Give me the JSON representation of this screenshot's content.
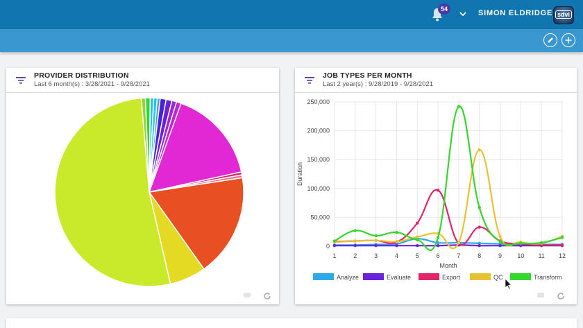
{
  "header": {
    "notifications_count": "54",
    "user_name": "SIMON ELDRIDGE",
    "avatar_text": "sdvi"
  },
  "colors": {
    "topbar": "#1176b0",
    "subbar": "#3b97d0",
    "badge": "#4a3aa8"
  },
  "provider_card": {
    "title": "PROVIDER DISTRIBUTION",
    "subtitle": "Last 6 month(s) : 3/28/2021 - 9/28/2021"
  },
  "jobs_card": {
    "title": "JOB TYPES PER MONTH",
    "subtitle": "Last 2 year(s) : 9/28/2019 - 9/28/2021"
  },
  "chart_data": [
    {
      "type": "pie",
      "title": "",
      "slices": [
        {
          "value": 0.6,
          "color": "#28c2e8"
        },
        {
          "value": 0.6,
          "color": "#28c2e8"
        },
        {
          "value": 0.5,
          "color": "#3aa5e0"
        },
        {
          "value": 1.0,
          "color": "#4622d8"
        },
        {
          "value": 1.0,
          "color": "#6a22d8"
        },
        {
          "value": 0.8,
          "color": "#a424d8"
        },
        {
          "value": 0.8,
          "color": "#c024d8"
        },
        {
          "value": 16.0,
          "color": "#e227d4"
        },
        {
          "value": 0.5,
          "color": "#e02667"
        },
        {
          "value": 0.5,
          "color": "#e7799a"
        },
        {
          "value": 17.5,
          "color": "#e84f22"
        },
        {
          "value": 6.2,
          "color": "#e4da24"
        },
        {
          "value": 52.0,
          "color": "#c8ea2a"
        },
        {
          "value": 0.7,
          "color": "#8cd83a"
        },
        {
          "value": 0.8,
          "color": "#37d62c"
        }
      ]
    },
    {
      "type": "line",
      "title": "",
      "xlabel": "Month",
      "ylabel": "Duration",
      "x": [
        1,
        2,
        3,
        4,
        5,
        6,
        7,
        8,
        9,
        10,
        11,
        12
      ],
      "xlim": [
        1,
        12
      ],
      "ylim": [
        0,
        250000
      ],
      "yticks": [
        "0",
        "50,000",
        "100,000",
        "150,000",
        "200,000",
        "250,000"
      ],
      "legend_position": "bottom",
      "series": [
        {
          "name": "Analyze",
          "color": "#2ea8e6",
          "values": [
            2000,
            2000,
            3000,
            4000,
            13000,
            6000,
            6000,
            5000,
            4000,
            3000,
            3000,
            3000
          ]
        },
        {
          "name": "Evaluate",
          "color": "#6a22d8",
          "values": [
            1000,
            1000,
            1000,
            1000,
            1000,
            1000,
            2000,
            1000,
            1000,
            1000,
            1000,
            1000
          ]
        },
        {
          "name": "Export",
          "color": "#e02667",
          "values": [
            8000,
            9000,
            10000,
            7000,
            40000,
            97000,
            5000,
            33000,
            9000,
            4000,
            2000,
            2000
          ]
        },
        {
          "name": "QC",
          "color": "#e8c232",
          "values": [
            7000,
            9000,
            10000,
            8000,
            16000,
            22000,
            6000,
            167000,
            17000,
            7000,
            5000,
            17000
          ]
        },
        {
          "name": "Transform",
          "color": "#37d62c",
          "values": [
            9000,
            27000,
            18000,
            24000,
            11000,
            15000,
            242000,
            67000,
            8000,
            5000,
            6000,
            15000
          ]
        }
      ]
    }
  ]
}
